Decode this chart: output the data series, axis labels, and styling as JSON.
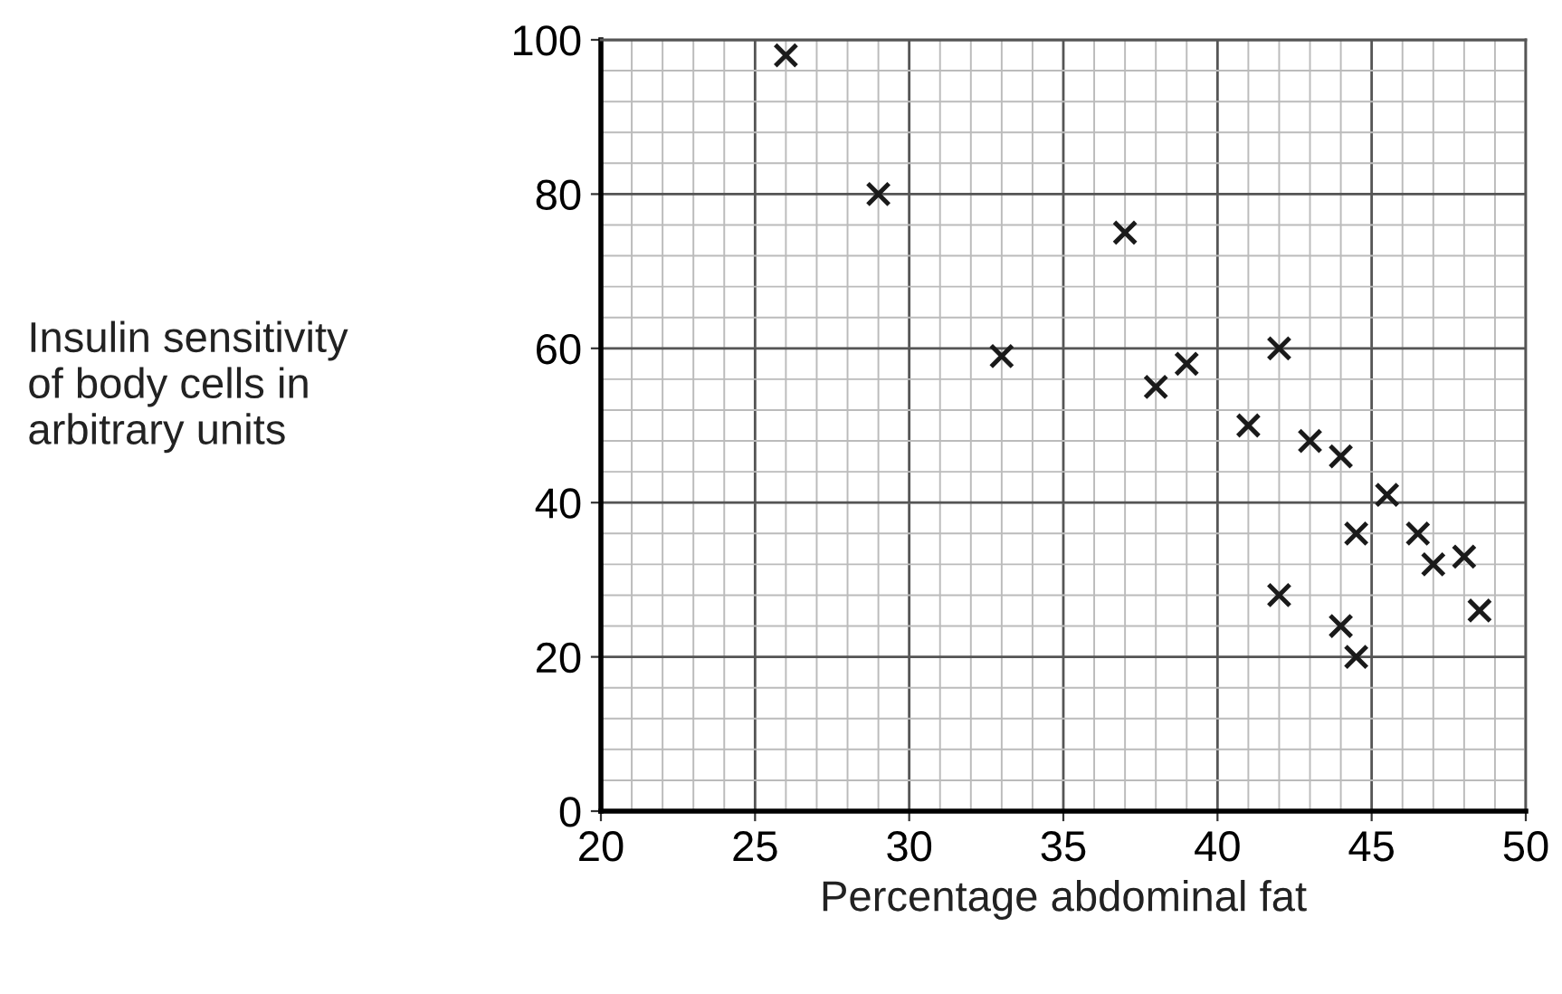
{
  "chart_data": {
    "type": "scatter",
    "xlabel": "Percentage abdominal fat",
    "ylabel": "Insulin sensitivity\nof body cells in\narbitrary units",
    "x": [
      26,
      29,
      33,
      37,
      38,
      39,
      41,
      42,
      42,
      43,
      44,
      44,
      44.5,
      44.5,
      45.5,
      46.5,
      47,
      48,
      48.5
    ],
    "series": [
      {
        "color": "#1a1a1a",
        "values": [
          98,
          80,
          59,
          75,
          55,
          58,
          50,
          60,
          28,
          48,
          46,
          24,
          36,
          20,
          41,
          36,
          32,
          33,
          26
        ]
      }
    ],
    "xlim": [
      20,
      50
    ],
    "xticks": [
      20,
      25,
      30,
      35,
      40,
      45,
      50
    ],
    "ylim": [
      0,
      100
    ],
    "yticks": [
      0,
      20,
      40,
      60,
      80,
      100
    ],
    "grid": true,
    "marker": "cross",
    "legend": false
  }
}
